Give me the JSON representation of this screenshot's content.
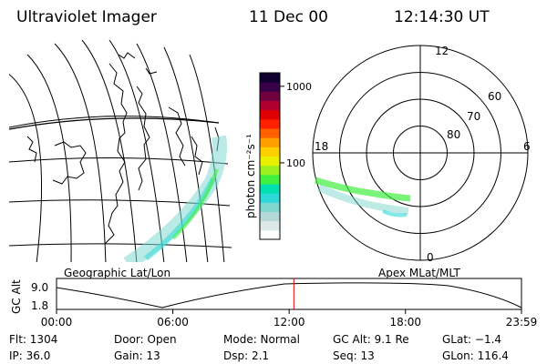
{
  "header": {
    "instrument": "Ultraviolet Imager",
    "date": "11 Dec 00",
    "time": "12:14:30 UT"
  },
  "geo_map": {
    "label": "Geographic Lat/Lon"
  },
  "colorbar": {
    "unit_label": "photon cm⁻²s⁻¹",
    "ticks": [
      {
        "value": 1000,
        "label": "1000"
      },
      {
        "value": 100,
        "label": "100"
      }
    ],
    "colors": [
      "#ffffff",
      "#dde8e8",
      "#b4d8d8",
      "#7fd8d0",
      "#2ed8d8",
      "#00e0b0",
      "#40f040",
      "#9cf020",
      "#e8f000",
      "#ffd000",
      "#ffa000",
      "#ff6000",
      "#ff2000",
      "#e00000",
      "#b00030",
      "#700040",
      "#380048",
      "#100030"
    ]
  },
  "polar": {
    "label": "Apex MLat/MLT",
    "mlt_labels": [
      "12",
      "18",
      "6",
      "0"
    ],
    "lat_labels": [
      "60",
      "70",
      "80"
    ],
    "lat_rings": [
      80,
      70,
      60,
      50
    ]
  },
  "altitude": {
    "axis_label": "GC Alt",
    "y_ticks": [
      "9.0",
      "1.8"
    ],
    "x_ticks": [
      "00:00",
      "06:00",
      "12:00",
      "18:00",
      "23:59"
    ],
    "cursor_time": "12:14:30"
  },
  "footer": {
    "rows": [
      [
        {
          "key": "flt",
          "text": "Flt: 1304"
        },
        {
          "key": "door",
          "text": "Door: Open"
        },
        {
          "key": "mode",
          "text": "Mode: Normal"
        },
        {
          "key": "gcalt",
          "text": "GC Alt: 9.1 Re"
        },
        {
          "key": "glat",
          "text": "GLat:  −1.4"
        }
      ],
      [
        {
          "key": "ip",
          "text": "IP: 36.0"
        },
        {
          "key": "gain",
          "text": "Gain: 13"
        },
        {
          "key": "dsp",
          "text": "Dsp:     2.1"
        },
        {
          "key": "seq",
          "text": "Seq: 13"
        },
        {
          "key": "glon",
          "text": "GLon: 116.4"
        }
      ]
    ]
  }
}
